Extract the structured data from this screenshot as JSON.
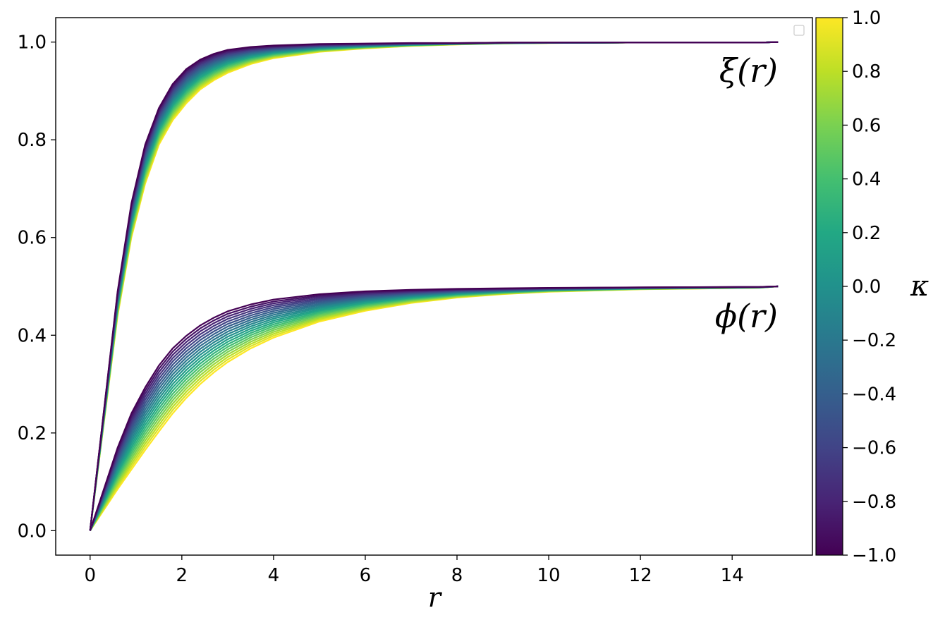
{
  "chart_data": {
    "type": "line",
    "title": "",
    "xlabel": "r",
    "ylabel": "",
    "xlim": [
      -0.75,
      15.75
    ],
    "ylim": [
      -0.05,
      1.05
    ],
    "xticks": [
      0,
      2,
      4,
      6,
      8,
      10,
      12,
      14
    ],
    "xtick_labels": [
      "0",
      "2",
      "4",
      "6",
      "8",
      "10",
      "12",
      "14"
    ],
    "yticks": [
      0.0,
      0.2,
      0.4,
      0.6,
      0.8,
      1.0
    ],
    "ytick_labels": [
      "0.0",
      "0.2",
      "0.4",
      "0.6",
      "0.8",
      "1.0"
    ],
    "grid": false,
    "legend": "top-right (empty)",
    "annotations": [
      {
        "text": "ξ(r)",
        "x": 14.7,
        "y": 0.93
      },
      {
        "text": "ϕ(r)",
        "x": 14.7,
        "y": 0.43
      }
    ],
    "colorbar": {
      "label": "κ",
      "colormap": "viridis",
      "range": [
        -1.0,
        1.0
      ],
      "ticks": [
        1.0,
        0.8,
        0.6,
        0.4,
        0.2,
        0.0,
        -0.2,
        -0.4,
        -0.6,
        -0.8,
        -1.0
      ],
      "tick_labels": [
        "1.0",
        "0.8",
        "0.6",
        "0.4",
        "0.2",
        "0.0",
        "−0.2",
        "−0.4",
        "−0.6",
        "−0.8",
        "−1.0"
      ]
    },
    "kappa_values": [
      -1.0,
      -0.9,
      -0.8,
      -0.7,
      -0.6,
      -0.5,
      -0.4,
      -0.3,
      -0.2,
      -0.1,
      0.0,
      0.1,
      0.2,
      0.3,
      0.4,
      0.5,
      0.6,
      0.7,
      0.8,
      0.9,
      1.0
    ],
    "x": [
      0,
      0.6,
      0.9,
      1.2,
      1.5,
      1.8,
      2.1,
      2.4,
      2.7,
      3.0,
      3.5,
      4.0,
      5.0,
      6.0,
      7.0,
      8.0,
      9.0,
      10.0,
      12.0,
      14.6,
      15.0
    ],
    "series_xi": {
      "kappa_min": [
        0,
        0.49,
        0.67,
        0.79,
        0.865,
        0.914,
        0.945,
        0.964,
        0.976,
        0.984,
        0.99,
        0.993,
        0.996,
        0.997,
        0.998,
        0.998,
        0.999,
        0.999,
        0.999,
        0.999,
        1.0
      ],
      "kappa_max": [
        0,
        0.44,
        0.6,
        0.71,
        0.79,
        0.84,
        0.875,
        0.903,
        0.922,
        0.937,
        0.955,
        0.967,
        0.98,
        0.987,
        0.992,
        0.995,
        0.997,
        0.998,
        0.999,
        0.999,
        1.0
      ]
    },
    "series_phi": {
      "kappa_min": [
        0,
        0.17,
        0.24,
        0.293,
        0.338,
        0.373,
        0.399,
        0.42,
        0.436,
        0.449,
        0.463,
        0.473,
        0.484,
        0.49,
        0.493,
        0.495,
        0.496,
        0.497,
        0.498,
        0.499,
        0.5
      ],
      "kappa_max": [
        0,
        0.085,
        0.125,
        0.165,
        0.203,
        0.24,
        0.272,
        0.3,
        0.324,
        0.345,
        0.373,
        0.395,
        0.428,
        0.45,
        0.466,
        0.477,
        0.484,
        0.489,
        0.494,
        0.497,
        0.5
      ]
    }
  }
}
